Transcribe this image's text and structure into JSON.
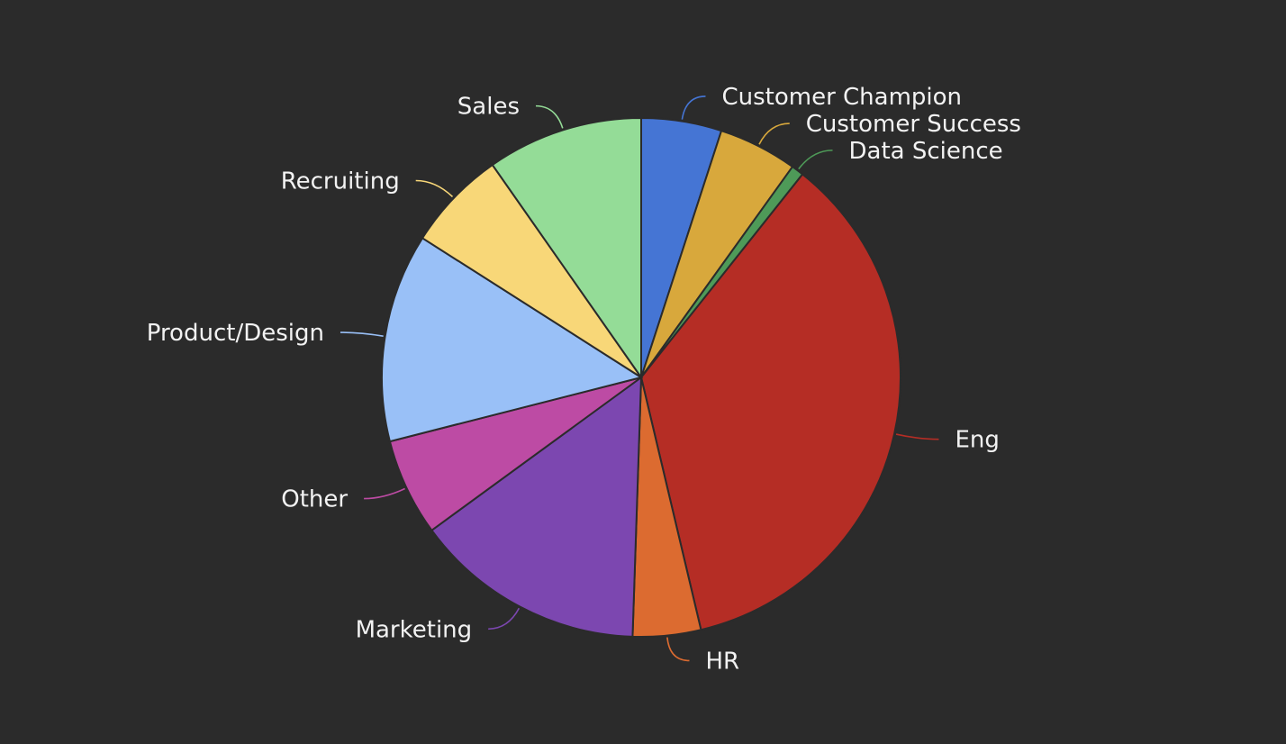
{
  "chart_data": {
    "type": "pie",
    "title": "",
    "start_angle_deg": 0,
    "direction": "clockwise",
    "legend": "none",
    "labels_outside": true,
    "slices": [
      {
        "name": "Customer Champion",
        "value": 5.2,
        "color": "#4575d4"
      },
      {
        "name": "Customer Success",
        "value": 5.1,
        "color": "#d8a83c"
      },
      {
        "name": "Data Science",
        "value": 0.8,
        "color": "#4e9a58"
      },
      {
        "name": "Eng",
        "value": 37.0,
        "color": "#b52d25"
      },
      {
        "name": "HR",
        "value": 4.4,
        "color": "#dc6b30"
      },
      {
        "name": "Marketing",
        "value": 15.0,
        "color": "#7c47b0"
      },
      {
        "name": "Other",
        "value": 6.3,
        "color": "#bd4ba4"
      },
      {
        "name": "Product/Design",
        "value": 13.5,
        "color": "#99c0f7"
      },
      {
        "name": "Recruiting",
        "value": 6.5,
        "color": "#f8d778"
      },
      {
        "name": "Sales",
        "value": 10.1,
        "color": "#94dc97"
      }
    ]
  }
}
